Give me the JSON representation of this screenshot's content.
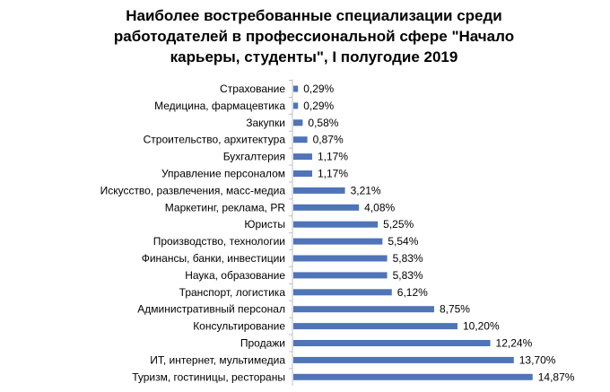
{
  "chart_data": {
    "type": "bar",
    "orientation": "horizontal",
    "title_lines": [
      "Наиболее востребованные специализации среди",
      "работодателей в профессиональной сфере \"Начало",
      "карьеры, студенты\", I полугодие 2019"
    ],
    "categories": [
      "Страхование",
      "Медицина, фармацевтика",
      "Закупки",
      "Строительство, архитектура",
      "Бухгалтерия",
      "Управление персоналом",
      "Искусство, развлечения, масс-медиа",
      "Маркетинг, реклама, PR",
      "Юристы",
      "Производство, технологии",
      "Финансы, банки, инвестиции",
      "Наука, образование",
      "Транспорт, логистика",
      "Административный персонал",
      "Консультирование",
      "Продажи",
      "ИТ, интернет, мультимедиа",
      "Туризм, гостиницы, рестораны"
    ],
    "values": [
      0.29,
      0.29,
      0.58,
      0.87,
      1.17,
      1.17,
      3.21,
      4.08,
      5.25,
      5.54,
      5.83,
      5.83,
      6.12,
      8.75,
      10.2,
      12.24,
      13.7,
      14.87
    ],
    "value_labels": [
      "0,29%",
      "0,29%",
      "0,58%",
      "0,87%",
      "1,17%",
      "1,17%",
      "3,21%",
      "4,08%",
      "5,25%",
      "5,54%",
      "5,83%",
      "5,83%",
      "6,12%",
      "8,75%",
      "10,20%",
      "12,24%",
      "13,70%",
      "14,87%"
    ],
    "xlim": [
      0,
      16
    ],
    "grid": false,
    "bar_color": "#4f74b8",
    "axis_color": "#bfbfbf"
  }
}
